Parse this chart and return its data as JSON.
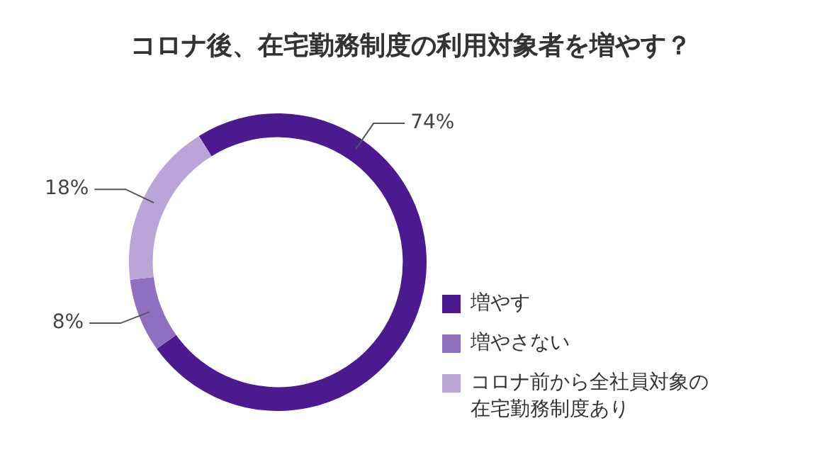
{
  "chart_data": {
    "type": "donut",
    "title": "コロナ後、在宅勤務制度の利用対象者を増やす？",
    "categories": [
      "増やす",
      "増やさない",
      "コロナ前から全社員対象の在宅勤務制度あり"
    ],
    "values": [
      74,
      8,
      18
    ],
    "colors": [
      "#4b1a8e",
      "#8f6fc0",
      "#b9a5d8"
    ],
    "value_labels": [
      "74%",
      "8%",
      "18%"
    ],
    "legend": "bottom right"
  }
}
